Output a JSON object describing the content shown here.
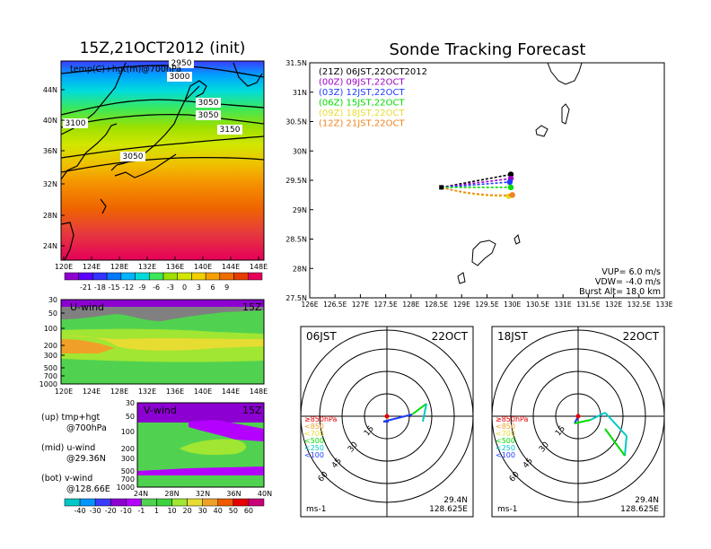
{
  "left_title": "15Z,21OCT2012 (init)",
  "main_title": "Sonde Tracking Forecast",
  "map_panel": {
    "label": "temp(C)+hgt(m)@700hPa",
    "lat_ticks": [
      "44N",
      "40N",
      "36N",
      "32N",
      "28N",
      "24N"
    ],
    "lon_ticks": [
      "120E",
      "124E",
      "128E",
      "132E",
      "136E",
      "140E",
      "144E",
      "148E"
    ],
    "contour_labels": [
      "2950",
      "3000",
      "3050",
      "3050",
      "3100",
      "3150",
      "3050"
    ],
    "colorbar": [
      "-21",
      "-18",
      "-15",
      "-12",
      "-9",
      "-6",
      "-3",
      "0",
      "3",
      "6",
      "9"
    ],
    "colorbar_colors": [
      "#8f00cf",
      "#5b00ff",
      "#3333ff",
      "#0077ff",
      "#00b4ff",
      "#00dcdc",
      "#3ce85a",
      "#9be000",
      "#d2e600",
      "#f0d000",
      "#f5a000",
      "#ef6e00",
      "#e63c00",
      "#e6005a"
    ]
  },
  "u_panel": {
    "label": "U-wind",
    "time": "15Z",
    "p_ticks": [
      "30",
      "50",
      "100",
      "200",
      "300",
      "500",
      "700",
      "1000"
    ],
    "lon_ticks": [
      "120E",
      "124E",
      "128E",
      "132E",
      "136E",
      "140E",
      "144E",
      "148E"
    ]
  },
  "v_panel": {
    "label": "V-wind",
    "time": "15Z",
    "p_ticks": [
      "30",
      "50",
      "100",
      "200",
      "300",
      "500",
      "700",
      "1000"
    ],
    "lat_ticks": [
      "24N",
      "28N",
      "32N",
      "36N",
      "40N"
    ],
    "colorbar": [
      "-40",
      "-30",
      "-20",
      "-10",
      "-1",
      "1",
      "10",
      "20",
      "30",
      "40",
      "50",
      "60"
    ],
    "colorbar_colors": [
      "#00c8c8",
      "#0096ff",
      "#3c3cff",
      "#8c00d2",
      "#b400ff",
      "#50d250",
      "#3cd23c",
      "#a0e632",
      "#e6dc32",
      "#f0a028",
      "#f05a00",
      "#e60000",
      "#c80078"
    ]
  },
  "legend_text": [
    {
      "line1": "(up) tmp+hgt",
      "line2": "@700hPa"
    },
    {
      "line1": "(mid) u-wind",
      "line2": "@29.36N"
    },
    {
      "line1": "(bot) v-wind",
      "line2": "@128.66E"
    }
  ],
  "track_panel": {
    "lat_ticks": [
      "31.5N",
      "31N",
      "30.5N",
      "30N",
      "29.5N",
      "29N",
      "28.5N",
      "28N",
      "27.5N"
    ],
    "lon_ticks": [
      "126E",
      "126.5E",
      "127E",
      "127.5E",
      "128E",
      "128.5E",
      "129E",
      "129.5E",
      "130E",
      "130.5E",
      "131E",
      "131.5E",
      "132E",
      "132.5E",
      "133E"
    ],
    "legend": [
      {
        "text": "(21Z)  06JST,22OCT2012",
        "color": "#000000"
      },
      {
        "text": "(00Z)  09JST,22OCT",
        "color": "#a000c8"
      },
      {
        "text": "(03Z)  12JST,22OCT",
        "color": "#1e3cff"
      },
      {
        "text": "(06Z)  15JST,22OCT",
        "color": "#00dc00"
      },
      {
        "text": "(09Z)  18JST,22OCT",
        "color": "#e6dc32"
      },
      {
        "text": "(12Z)  21JST,22OCT",
        "color": "#f0821e"
      }
    ],
    "params": [
      "VUP=  6.0  m/s",
      "VDW= -4.0  m/s",
      "Burst Alt=  18.0  km"
    ]
  },
  "hodographs": [
    {
      "time": "06JST",
      "date": "22OCT",
      "lat": "29.4N",
      "lon": "128.625E",
      "unit": "ms-1"
    },
    {
      "time": "18JST",
      "date": "22OCT",
      "lat": "29.4N",
      "lon": "128.625E",
      "unit": "ms-1"
    }
  ],
  "hodo_legend": [
    {
      "text": "≥850hPa",
      "color": "#e60000"
    },
    {
      "text": "<850",
      "color": "#f0a028"
    },
    {
      "text": "<700",
      "color": "#e6dc32"
    },
    {
      "text": "<500",
      "color": "#00dc00"
    },
    {
      "text": "<250",
      "color": "#00c8c8"
    },
    {
      "text": "<100",
      "color": "#1e3cff"
    }
  ],
  "hodo_ring_labels": [
    "15",
    "30",
    "45",
    "60"
  ],
  "chart_data": {
    "type": "line",
    "title": "Sonde Tracking Forecast",
    "x_label": "",
    "y_label": "",
    "xlim": [
      126,
      133
    ],
    "ylim": [
      27.5,
      31.5
    ],
    "launch": {
      "lon": 128.6,
      "lat": 29.38
    },
    "series": [
      {
        "name": "(21Z)  06JST,22OCT2012",
        "color": "#000000",
        "end": {
          "lon": 129.97,
          "lat": 29.6
        }
      },
      {
        "name": "(00Z)  09JST,22OCT",
        "color": "#a000c8",
        "end": {
          "lon": 129.97,
          "lat": 29.53
        }
      },
      {
        "name": "(03Z)  12JST,22OCT",
        "color": "#1e3cff",
        "end": {
          "lon": 129.95,
          "lat": 29.47
        }
      },
      {
        "name": "(06Z)  15JST,22OCT",
        "color": "#00dc00",
        "end": {
          "lon": 129.97,
          "lat": 29.38
        }
      },
      {
        "name": "(09Z)  18JST,22OCT",
        "color": "#e6dc32",
        "end": {
          "lon": 129.93,
          "lat": 29.23
        }
      },
      {
        "name": "(12Z)  21JST,22OCT",
        "color": "#f0821e",
        "end": {
          "lon": 130.0,
          "lat": 29.25
        }
      }
    ]
  }
}
